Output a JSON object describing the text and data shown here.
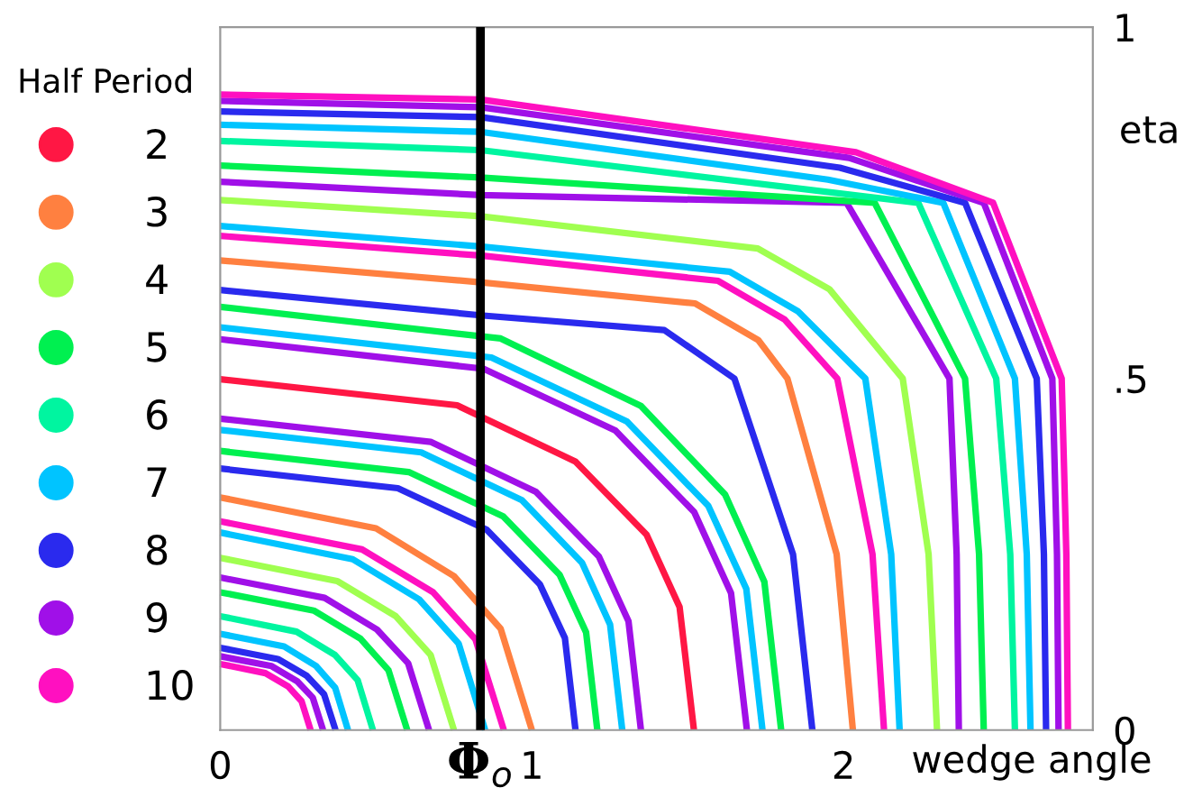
{
  "chart_data": {
    "type": "line",
    "xlabel": "wedge angle",
    "ylabel": "eta",
    "legend_title": "Half Period",
    "legend": "left",
    "xlim": [
      0,
      2.8
    ],
    "xticks": [
      0,
      1,
      2
    ],
    "ylim": [
      0,
      1
    ],
    "yticks": [
      0,
      {
        "value": 0.5,
        "label": ".5"
      },
      1
    ],
    "ref_lines": [
      {
        "axis": "x",
        "value": 0.835,
        "label": "Φ$_{o}$",
        "color": "#000000"
      }
    ],
    "series": [
      {
        "name": "2",
        "color": "#ff1744",
        "x": [
          0,
          0.76,
          1.14,
          1.368,
          1.474,
          1.52
        ],
        "values": [
          0.499,
          0.462,
          0.382,
          0.278,
          0.175,
          0
        ]
      },
      {
        "name": "3",
        "color": "#ff8040",
        "x": [
          0,
          0.5,
          0.75,
          0.9,
          1.0
        ],
        "values": [
          0.331,
          0.287,
          0.219,
          0.144,
          0
        ]
      },
      {
        "name": "4",
        "color": "#a0ff50",
        "x": [
          0,
          0.375,
          0.563,
          0.675,
          0.75
        ],
        "values": [
          0.245,
          0.212,
          0.162,
          0.107,
          0
        ]
      },
      {
        "name": "5",
        "color": "#00f050",
        "x": [
          0,
          0.3,
          0.45,
          0.54,
          0.6
        ],
        "values": [
          0.196,
          0.17,
          0.13,
          0.085,
          0
        ]
      },
      {
        "name": "6",
        "color": "#00f5a0",
        "x": [
          0,
          0.245,
          0.368,
          0.441,
          0.49
        ],
        "values": [
          0.162,
          0.14,
          0.107,
          0.071,
          0
        ]
      },
      {
        "name": "7",
        "color": "#00c4ff",
        "x": [
          0,
          0.205,
          0.308,
          0.369,
          0.41
        ],
        "values": [
          0.137,
          0.119,
          0.091,
          0.06,
          0
        ]
      },
      {
        "name": "8",
        "color": "#2a2aee",
        "x": [
          0,
          0.185,
          0.278,
          0.333,
          0.37
        ],
        "values": [
          0.117,
          0.101,
          0.077,
          0.051,
          0
        ]
      },
      {
        "name": "9",
        "color": "#a010e8",
        "x": [
          0,
          0.165,
          0.248,
          0.297,
          0.33
        ],
        "values": [
          0.105,
          0.091,
          0.069,
          0.046,
          0
        ]
      },
      {
        "name": "10",
        "color": "#ff10c0",
        "x": [
          0,
          0.145,
          0.218,
          0.261,
          0.29
        ],
        "values": [
          0.094,
          0.081,
          0.062,
          0.041,
          0
        ]
      },
      {
        "color": "#a010e8",
        "x": [
          0,
          0.335,
          0.503,
          0.603,
          0.67
        ],
        "values": [
          0.217,
          0.188,
          0.143,
          0.095,
          0
        ]
      },
      {
        "color": "#00c4ff",
        "x": [
          0,
          0.425,
          0.638,
          0.765,
          0.85
        ],
        "values": [
          0.281,
          0.243,
          0.186,
          0.123,
          0
        ]
      },
      {
        "color": "#ff10c0",
        "x": [
          0,
          0.455,
          0.683,
          0.819,
          0.91
        ],
        "values": [
          0.297,
          0.257,
          0.196,
          0.129,
          0
        ]
      },
      {
        "color": "#2a2aee",
        "x": [
          0,
          0.57,
          0.855,
          1.026,
          1.106,
          1.14
        ],
        "values": [
          0.372,
          0.344,
          0.285,
          0.207,
          0.131,
          0
        ]
      },
      {
        "color": "#00f050",
        "x": [
          0,
          0.605,
          0.908,
          1.089,
          1.174,
          1.21
        ],
        "values": [
          0.397,
          0.367,
          0.304,
          0.221,
          0.139,
          0
        ]
      },
      {
        "color": "#00c4ff",
        "x": [
          0,
          0.645,
          0.968,
          1.161,
          1.251,
          1.29
        ],
        "values": [
          0.427,
          0.395,
          0.327,
          0.238,
          0.15,
          0
        ]
      },
      {
        "color": "#a010e8",
        "x": [
          0,
          0.675,
          1.013,
          1.215,
          1.31,
          1.35
        ],
        "values": [
          0.443,
          0.41,
          0.339,
          0.247,
          0.155,
          0
        ]
      },
      {
        "color": "#a010e8",
        "x": [
          0,
          0.845,
          1.268,
          1.521,
          1.639,
          1.69
        ],
        "values": [
          0.556,
          0.514,
          0.426,
          0.31,
          0.195,
          0
        ]
      },
      {
        "color": "#00c4ff",
        "x": [
          0,
          0.87,
          1.305,
          1.566,
          1.688,
          1.74
        ],
        "values": [
          0.573,
          0.53,
          0.439,
          0.319,
          0.201,
          0
        ]
      },
      {
        "color": "#00f050",
        "x": [
          0,
          0.9,
          1.35,
          1.62,
          1.746,
          1.8
        ],
        "values": [
          0.602,
          0.557,
          0.461,
          0.335,
          0.211,
          0
        ]
      },
      {
        "color": "#2a2aee",
        "x": [
          0,
          0.835,
          1.425,
          1.65,
          1.838,
          1.9
        ],
        "values": [
          0.626,
          0.59,
          0.569,
          0.5,
          0.25,
          0
        ]
      },
      {
        "color": "#ff8040",
        "x": [
          0,
          0.835,
          1.523,
          1.726,
          1.82,
          1.978,
          2.03
        ],
        "values": [
          0.668,
          0.637,
          0.607,
          0.555,
          0.5,
          0.25,
          0
        ]
      },
      {
        "color": "#ff10c0",
        "x": [
          0,
          0.835,
          1.598,
          1.811,
          1.98,
          2.093,
          2.13
        ],
        "values": [
          0.703,
          0.675,
          0.639,
          0.584,
          0.5,
          0.25,
          0
        ]
      },
      {
        "color": "#00c4ff",
        "x": [
          0,
          0.835,
          1.635,
          1.853,
          2.07,
          2.153,
          2.18
        ],
        "values": [
          0.717,
          0.688,
          0.652,
          0.596,
          0.5,
          0.25,
          0
        ]
      },
      {
        "color": "#a0ff50",
        "x": [
          0,
          0.835,
          1.725,
          1.955,
          2.19,
          2.273,
          2.3
        ],
        "values": [
          0.754,
          0.731,
          0.685,
          0.627,
          0.5,
          0.25,
          0
        ]
      },
      {
        "color": "#a010e8",
        "x": [
          0,
          0.835,
          2.01,
          2.34,
          2.363,
          2.37
        ],
        "values": [
          0.78,
          0.761,
          0.75,
          0.5,
          0.25,
          0
        ]
      },
      {
        "color": "#00f050",
        "x": [
          0,
          0.835,
          2.1,
          2.39,
          2.435,
          2.45
        ],
        "values": [
          0.803,
          0.786,
          0.75,
          0.5,
          0.25,
          0
        ]
      },
      {
        "color": "#00f5a0",
        "x": [
          0,
          0.835,
          2.24,
          2.49,
          2.535,
          2.55
        ],
        "values": [
          0.838,
          0.825,
          0.75,
          0.5,
          0.25,
          0
        ]
      },
      {
        "color": "#00c4ff",
        "x": [
          0,
          0.835,
          1.95,
          2.32,
          2.55,
          2.588,
          2.6
        ],
        "values": [
          0.861,
          0.851,
          0.783,
          0.75,
          0.5,
          0.25,
          0
        ]
      },
      {
        "color": "#2a2aee",
        "x": [
          0,
          0.835,
          1.988,
          2.39,
          2.62,
          2.643,
          2.65
        ],
        "values": [
          0.88,
          0.872,
          0.8,
          0.75,
          0.5,
          0.25,
          0
        ]
      },
      {
        "color": "#a010e8",
        "x": [
          0,
          0.835,
          2.018,
          2.45,
          2.67,
          2.685,
          2.69
        ],
        "values": [
          0.895,
          0.886,
          0.814,
          0.75,
          0.5,
          0.25,
          0
        ]
      },
      {
        "color": "#ff10c0",
        "x": [
          0,
          0.835,
          2.04,
          2.48,
          2.7,
          2.715,
          2.72
        ],
        "values": [
          0.904,
          0.897,
          0.822,
          0.75,
          0.5,
          0.25,
          0
        ]
      }
    ]
  }
}
